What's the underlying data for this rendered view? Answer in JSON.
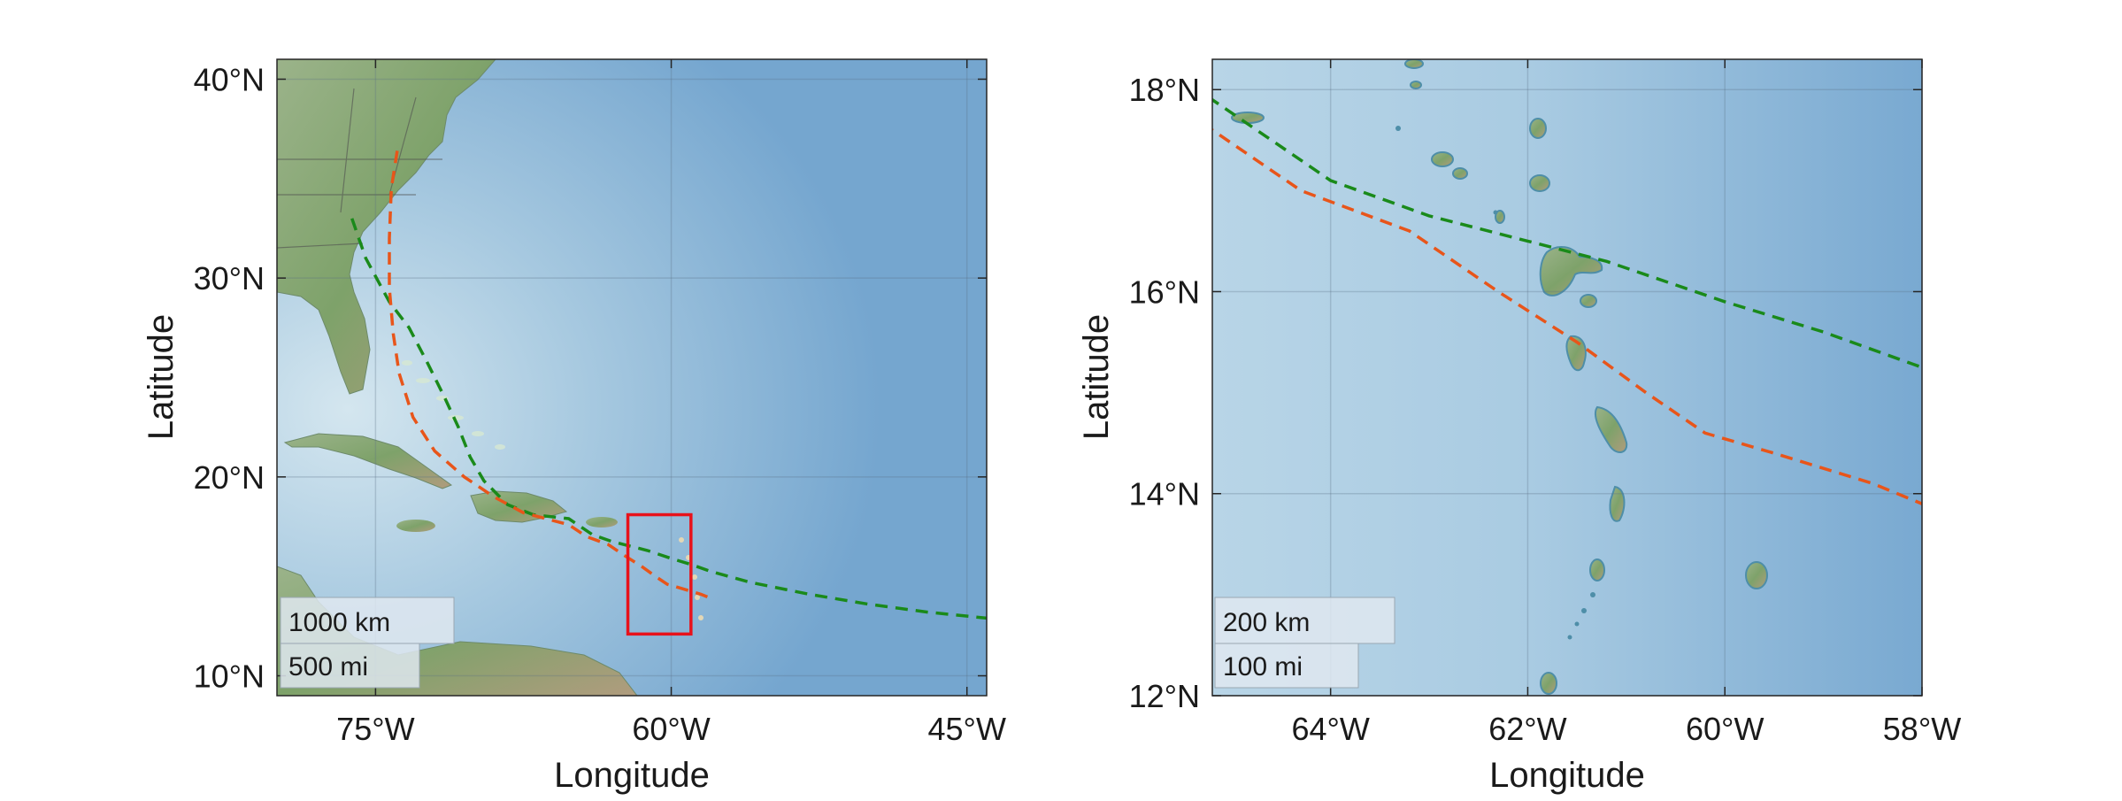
{
  "figure": {
    "panels": [
      {
        "name": "overview",
        "xlabel": "Longitude",
        "ylabel": "Latitude",
        "xlim": [
          -80,
          -44
        ],
        "ylim": [
          9,
          41
        ],
        "xticks": [
          {
            "value": -75,
            "label": "75°W"
          },
          {
            "value": -60,
            "label": "60°W"
          },
          {
            "value": -45,
            "label": "45°W"
          }
        ],
        "yticks": [
          {
            "value": 10,
            "label": "10°N"
          },
          {
            "value": 20,
            "label": "20°N"
          },
          {
            "value": 30,
            "label": "30°N"
          },
          {
            "value": 40,
            "label": "40°N"
          }
        ],
        "scalebar": [
          "1000 km",
          "500 mi"
        ],
        "inset_box": {
          "lon": [
            -62.2,
            -59
          ],
          "lat": [
            12.1,
            18.1
          ],
          "color": "#e8121b"
        }
      },
      {
        "name": "zoom",
        "xlabel": "Longitude",
        "ylabel": "Latitude",
        "xlim": [
          -65.2,
          -58
        ],
        "ylim": [
          12,
          18.3
        ],
        "xticks": [
          {
            "value": -64,
            "label": "64°W"
          },
          {
            "value": -62,
            "label": "62°W"
          },
          {
            "value": -60,
            "label": "60°W"
          },
          {
            "value": -58,
            "label": "58°W"
          }
        ],
        "yticks": [
          {
            "value": 12,
            "label": "12°N"
          },
          {
            "value": 14,
            "label": "14°N"
          },
          {
            "value": 16,
            "label": "16°N"
          },
          {
            "value": 18,
            "label": "18°N"
          }
        ],
        "scalebar": [
          "200 km",
          "100 mi"
        ]
      }
    ]
  },
  "tracks": [
    {
      "color": "#1a8a1a",
      "points": [
        [
          -76.2,
          33
        ],
        [
          -75.5,
          31
        ],
        [
          -74.3,
          28.8
        ],
        [
          -73.3,
          27.5
        ],
        [
          -72.4,
          25.8
        ],
        [
          -71.5,
          24
        ],
        [
          -70.8,
          22.5
        ],
        [
          -70.2,
          21
        ],
        [
          -69.5,
          19.8
        ],
        [
          -68.3,
          18.6
        ],
        [
          -67,
          18.1
        ],
        [
          -65.2,
          17.9
        ],
        [
          -64,
          17.1
        ],
        [
          -63,
          16.75
        ],
        [
          -62,
          16.5
        ],
        [
          -61.2,
          16.3
        ],
        [
          -60,
          15.9
        ],
        [
          -59,
          15.6
        ],
        [
          -58,
          15.25
        ],
        [
          -56,
          14.7
        ],
        [
          -53,
          14.1
        ],
        [
          -50,
          13.6
        ],
        [
          -47,
          13.2
        ],
        [
          -44,
          12.9
        ]
      ]
    },
    {
      "color": "#e8551a",
      "points": [
        [
          -73.9,
          36.4
        ],
        [
          -74.2,
          34.5
        ],
        [
          -74.3,
          32
        ],
        [
          -74.3,
          29.5
        ],
        [
          -74.1,
          27.2
        ],
        [
          -73.8,
          25.2
        ],
        [
          -73.1,
          23
        ],
        [
          -72,
          21.3
        ],
        [
          -70.5,
          20
        ],
        [
          -69,
          19
        ],
        [
          -67.5,
          18.2
        ],
        [
          -65.2,
          17.6
        ],
        [
          -64.3,
          17
        ],
        [
          -63.2,
          16.6
        ],
        [
          -62.3,
          16
        ],
        [
          -61.5,
          15.5
        ],
        [
          -60.8,
          15
        ],
        [
          -60.2,
          14.6
        ],
        [
          -59.5,
          14.4
        ],
        [
          -58.5,
          14.1
        ],
        [
          -58,
          13.9
        ]
      ]
    }
  ]
}
